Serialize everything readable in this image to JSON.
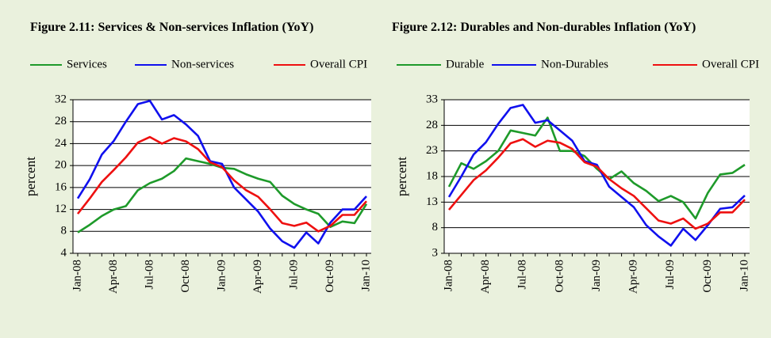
{
  "chart_data": [
    {
      "type": "line",
      "title": "Figure 2.11: Services & Non-services Inflation (YoY)",
      "y_label": "percent",
      "categories": [
        "Jan-08",
        null,
        null,
        "Apr-08",
        null,
        null,
        "Jul-08",
        null,
        null,
        "Oct-08",
        null,
        null,
        "Jan-09",
        null,
        null,
        "Apr-09",
        null,
        null,
        "Jul-09",
        null,
        null,
        "Oct-09",
        null,
        null,
        "Jan-10"
      ],
      "series": [
        {
          "name": "Services",
          "color": "#1e9a2a",
          "values": [
            7.8,
            9.2,
            10.8,
            12,
            12.6,
            15.5,
            16.8,
            17.6,
            19,
            21.3,
            20.8,
            20.3,
            19.6,
            19.4,
            18.4,
            17.6,
            17,
            14.5,
            13,
            12,
            11.2,
            8.8,
            9.8,
            9.5,
            13
          ]
        },
        {
          "name": "Non-services",
          "color": "#1010ee",
          "values": [
            14,
            17.5,
            22,
            24.5,
            28,
            31.2,
            31.8,
            28.4,
            29.2,
            27.5,
            25.4,
            20.8,
            20.3,
            16,
            13.8,
            11.6,
            8.5,
            6.2,
            5,
            7.8,
            5.8,
            9.6,
            12,
            12,
            14.4
          ]
        },
        {
          "name": "Overall CPI",
          "color": "#ee1010",
          "values": [
            11.2,
            14,
            17,
            19.2,
            21.5,
            24.2,
            25.2,
            24,
            25,
            24.4,
            23,
            20.6,
            19.7,
            17.3,
            15.5,
            14.3,
            12,
            9.5,
            9,
            9.6,
            8,
            9,
            11,
            11,
            13.5
          ]
        }
      ],
      "ylim": [
        4,
        32
      ],
      "yticks": [
        4,
        8,
        12,
        16,
        20,
        24,
        28,
        32
      ],
      "grid": true
    },
    {
      "type": "line",
      "title": "Figure 2.12: Durables and Non-durables Inflation (YoY)",
      "y_label": "percent",
      "categories": [
        "Jan-08",
        null,
        null,
        "Apr-08",
        null,
        null,
        "Jul-08",
        null,
        null,
        "Oct-08",
        null,
        null,
        "Jan-09",
        null,
        null,
        "Apr-09",
        null,
        null,
        "Jul-09",
        null,
        null,
        "Oct-09",
        null,
        null,
        "Jan-10"
      ],
      "series": [
        {
          "name": "Durable",
          "color": "#1e9a2a",
          "values": [
            16,
            20.6,
            19.5,
            21,
            23,
            27,
            26.5,
            26,
            29.5,
            23,
            23,
            22,
            19.5,
            17.5,
            19,
            16.7,
            15.2,
            13.2,
            14.2,
            13,
            9.8,
            14.8,
            18.4,
            18.7,
            20.3
          ]
        },
        {
          "name": "Non-Durables",
          "color": "#1010ee",
          "values": [
            14,
            18,
            22.3,
            24.7,
            28.3,
            31.4,
            32,
            28.5,
            29,
            27,
            25,
            21,
            20.3,
            16,
            14,
            12,
            8.5,
            6.3,
            4.5,
            7.8,
            5.6,
            8.5,
            11.7,
            12,
            14.3
          ]
        },
        {
          "name": "Overall CPI",
          "color": "#ee1010",
          "values": [
            11.5,
            14.4,
            17.3,
            19.2,
            21.7,
            24.5,
            25.3,
            23.8,
            25,
            24.6,
            23.4,
            20.8,
            19.9,
            17.5,
            15.7,
            14.2,
            11.8,
            9.4,
            8.8,
            9.8,
            7.8,
            8.8,
            11,
            11,
            13.5
          ]
        }
      ],
      "ylim": [
        3,
        33
      ],
      "yticks": [
        3,
        8,
        13,
        18,
        23,
        28,
        33
      ],
      "grid": true
    }
  ]
}
